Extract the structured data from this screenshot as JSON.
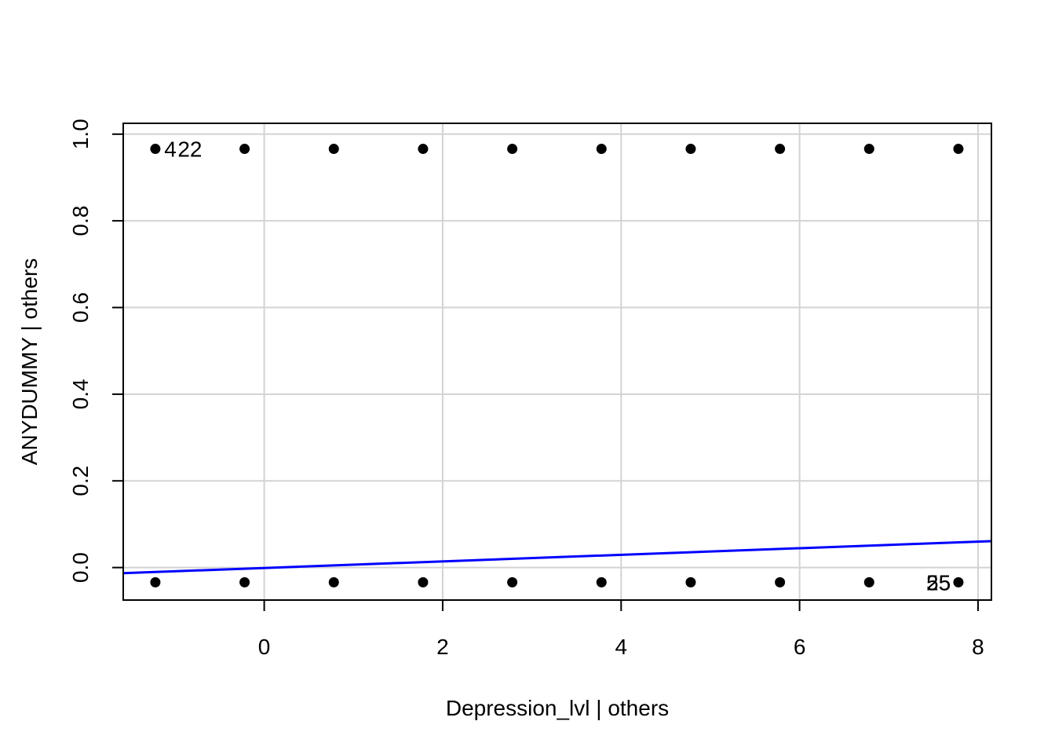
{
  "chart_data": {
    "type": "scatter",
    "title": "",
    "xlabel": "Depression_lvl | others",
    "ylabel": "ANYDUMMY  | others",
    "xlim": [
      -1.58,
      8.15
    ],
    "ylim": [
      -0.075,
      1.025
    ],
    "x_ticks": [
      0,
      2,
      4,
      6,
      8
    ],
    "y_ticks": [
      0.0,
      0.2,
      0.4,
      0.6,
      0.8,
      1.0
    ],
    "x_tick_labels": [
      "0",
      "2",
      "4",
      "6",
      "8"
    ],
    "y_tick_labels": [
      "0.0",
      "0.2",
      "0.4",
      "0.6",
      "0.8",
      "1.0"
    ],
    "grid": true,
    "series": [
      {
        "points": [
          {
            "x": -1.22,
            "y": 0.966
          },
          {
            "x": -0.22,
            "y": 0.966
          },
          {
            "x": 0.78,
            "y": 0.966
          },
          {
            "x": 1.78,
            "y": 0.966
          },
          {
            "x": 2.78,
            "y": 0.966
          },
          {
            "x": 3.78,
            "y": 0.966
          },
          {
            "x": 4.78,
            "y": 0.966
          },
          {
            "x": 5.78,
            "y": 0.966
          },
          {
            "x": 6.78,
            "y": 0.966
          },
          {
            "x": 7.78,
            "y": 0.966
          },
          {
            "x": -1.22,
            "y": -0.034
          },
          {
            "x": -0.22,
            "y": -0.034
          },
          {
            "x": 0.78,
            "y": -0.034
          },
          {
            "x": 1.78,
            "y": -0.034
          },
          {
            "x": 2.78,
            "y": -0.034
          },
          {
            "x": 3.78,
            "y": -0.034
          },
          {
            "x": 4.78,
            "y": -0.034
          },
          {
            "x": 5.78,
            "y": -0.034
          },
          {
            "x": 6.78,
            "y": -0.034
          },
          {
            "x": 7.78,
            "y": -0.034
          }
        ]
      }
    ],
    "fit_line": {
      "x": [
        -1.58,
        8.15
      ],
      "y": [
        -0.013,
        0.061
      ],
      "color": "#0000ff"
    },
    "annotations": [
      {
        "text": "4",
        "x": -1.12,
        "y": 0.966
      },
      {
        "text": "22",
        "x": -0.97,
        "y": 0.966
      },
      {
        "text": "55",
        "x": 7.42,
        "y": -0.034
      },
      {
        "text": "25",
        "x": 7.42,
        "y": -0.034
      }
    ],
    "colors": {
      "points": "#000000",
      "grid": "#d3d3d3",
      "axis": "#000000"
    }
  }
}
